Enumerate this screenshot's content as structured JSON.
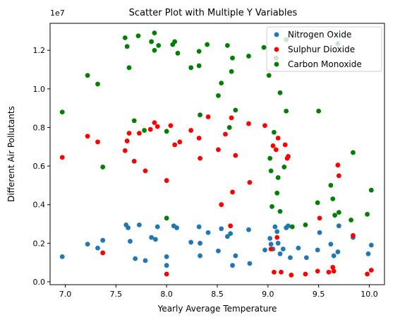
{
  "chart_data": {
    "type": "scatter",
    "title": "Scatter Plot with Multiple Y Variables",
    "xlabel": "Yearly Average Temperature",
    "ylabel": "Different Air Pollutants",
    "y_multiplier_label": "1e7",
    "xlim": [
      6.85,
      10.15
    ],
    "ylim": [
      -150000,
      13400000
    ],
    "x_ticks": [
      7.0,
      7.5,
      8.0,
      8.5,
      9.0,
      9.5,
      10.0
    ],
    "x_tick_labels": [
      "7.0",
      "7.5",
      "8.0",
      "8.5",
      "9.0",
      "9.5",
      "10.0"
    ],
    "y_ticks": [
      0,
      2000000,
      4000000,
      6000000,
      8000000,
      10000000,
      12000000
    ],
    "y_tick_labels": [
      "0.0",
      "0.2",
      "0.4",
      "0.6",
      "0.8",
      "1.0",
      "1.2"
    ],
    "legend_position": "upper-right",
    "series": [
      {
        "name": "Nitrogen Oxide",
        "color": "#1f77b4",
        "points": [
          [
            6.97,
            1300000
          ],
          [
            7.22,
            1950000
          ],
          [
            7.32,
            1750000
          ],
          [
            7.37,
            2150000
          ],
          [
            7.6,
            2950000
          ],
          [
            7.62,
            2800000
          ],
          [
            7.64,
            2100000
          ],
          [
            7.69,
            1200000
          ],
          [
            7.73,
            2950000
          ],
          [
            7.79,
            1100000
          ],
          [
            7.85,
            2300000
          ],
          [
            7.89,
            2200000
          ],
          [
            7.91,
            2850000
          ],
          [
            8.0,
            1300000
          ],
          [
            8.0,
            850000
          ],
          [
            8.07,
            2900000
          ],
          [
            8.1,
            2800000
          ],
          [
            8.24,
            2050000
          ],
          [
            8.32,
            2850000
          ],
          [
            8.33,
            1350000
          ],
          [
            8.33,
            2000000
          ],
          [
            8.41,
            2550000
          ],
          [
            8.51,
            1600000
          ],
          [
            8.54,
            2750000
          ],
          [
            8.6,
            2350000
          ],
          [
            8.63,
            2500000
          ],
          [
            8.65,
            850000
          ],
          [
            8.68,
            1350000
          ],
          [
            8.81,
            2700000
          ],
          [
            8.82,
            950000
          ],
          [
            8.97,
            1650000
          ],
          [
            9.02,
            2250000
          ],
          [
            9.03,
            1950000
          ],
          [
            9.05,
            1700000
          ],
          [
            9.07,
            2850000
          ],
          [
            9.09,
            2600000
          ],
          [
            9.1,
            2000000
          ],
          [
            9.12,
            1450000
          ],
          [
            9.15,
            1700000
          ],
          [
            9.18,
            2800000
          ],
          [
            9.2,
            2900000
          ],
          [
            9.22,
            1250000
          ],
          [
            9.3,
            1750000
          ],
          [
            9.38,
            1250000
          ],
          [
            9.49,
            1650000
          ],
          [
            9.51,
            2550000
          ],
          [
            9.62,
            1950000
          ],
          [
            9.65,
            1350000
          ],
          [
            9.69,
            1550000
          ],
          [
            9.7,
            2900000
          ],
          [
            9.84,
            2300000
          ],
          [
            9.99,
            1450000
          ],
          [
            10.02,
            1900000
          ]
        ]
      },
      {
        "name": "Sulphur Dioxide",
        "color": "#ff0000",
        "points": [
          [
            6.97,
            6450000
          ],
          [
            7.22,
            7550000
          ],
          [
            7.32,
            7250000
          ],
          [
            7.37,
            1500000
          ],
          [
            7.59,
            6800000
          ],
          [
            7.61,
            7300000
          ],
          [
            7.63,
            7700000
          ],
          [
            7.68,
            6250000
          ],
          [
            7.73,
            7700000
          ],
          [
            7.79,
            5750000
          ],
          [
            7.84,
            7900000
          ],
          [
            7.88,
            8250000
          ],
          [
            7.91,
            8050000
          ],
          [
            8.0,
            5250000
          ],
          [
            8.0,
            400000
          ],
          [
            8.04,
            8100000
          ],
          [
            8.08,
            7100000
          ],
          [
            8.13,
            7250000
          ],
          [
            8.24,
            7850000
          ],
          [
            8.32,
            7450000
          ],
          [
            8.33,
            6400000
          ],
          [
            8.41,
            8550000
          ],
          [
            8.51,
            6850000
          ],
          [
            8.54,
            4000000
          ],
          [
            8.58,
            7650000
          ],
          [
            8.63,
            2900000
          ],
          [
            8.64,
            8500000
          ],
          [
            8.65,
            4650000
          ],
          [
            8.68,
            6550000
          ],
          [
            8.81,
            8200000
          ],
          [
            8.82,
            5150000
          ],
          [
            8.97,
            8100000
          ],
          [
            9.03,
            1700000
          ],
          [
            9.05,
            7050000
          ],
          [
            9.06,
            500000
          ],
          [
            9.08,
            6850000
          ],
          [
            9.09,
            2300000
          ],
          [
            9.1,
            7450000
          ],
          [
            9.13,
            500000
          ],
          [
            9.17,
            7100000
          ],
          [
            9.19,
            6400000
          ],
          [
            9.2,
            6500000
          ],
          [
            9.23,
            350000
          ],
          [
            9.37,
            400000
          ],
          [
            9.49,
            550000
          ],
          [
            9.51,
            3300000
          ],
          [
            9.6,
            500000
          ],
          [
            9.64,
            750000
          ],
          [
            9.65,
            550000
          ],
          [
            9.69,
            6050000
          ],
          [
            9.7,
            5500000
          ],
          [
            9.84,
            2400000
          ],
          [
            9.98,
            400000
          ],
          [
            10.02,
            600000
          ]
        ]
      },
      {
        "name": "Carbon Monoxide",
        "color": "#008000",
        "points": [
          [
            6.97,
            8800000
          ],
          [
            7.22,
            10700000
          ],
          [
            7.32,
            10250000
          ],
          [
            7.37,
            5950000
          ],
          [
            7.59,
            12650000
          ],
          [
            7.61,
            12200000
          ],
          [
            7.63,
            11100000
          ],
          [
            7.68,
            8350000
          ],
          [
            7.72,
            12750000
          ],
          [
            7.78,
            7850000
          ],
          [
            7.85,
            12450000
          ],
          [
            7.88,
            12000000
          ],
          [
            7.88,
            12900000
          ],
          [
            7.92,
            12250000
          ],
          [
            8.0,
            7800000
          ],
          [
            8.0,
            3300000
          ],
          [
            8.06,
            12300000
          ],
          [
            8.08,
            12450000
          ],
          [
            8.11,
            11850000
          ],
          [
            8.24,
            11100000
          ],
          [
            8.32,
            11950000
          ],
          [
            8.32,
            11200000
          ],
          [
            8.33,
            8650000
          ],
          [
            8.4,
            12300000
          ],
          [
            8.51,
            9650000
          ],
          [
            8.54,
            10300000
          ],
          [
            8.6,
            12250000
          ],
          [
            8.62,
            8000000
          ],
          [
            8.64,
            10900000
          ],
          [
            8.65,
            11600000
          ],
          [
            8.68,
            8900000
          ],
          [
            8.81,
            11700000
          ],
          [
            8.96,
            12150000
          ],
          [
            9.01,
            10700000
          ],
          [
            9.02,
            6400000
          ],
          [
            9.03,
            5750000
          ],
          [
            9.04,
            3900000
          ],
          [
            9.06,
            7750000
          ],
          [
            9.08,
            11600000
          ],
          [
            9.09,
            4600000
          ],
          [
            9.1,
            5400000
          ],
          [
            9.12,
            3650000
          ],
          [
            9.12,
            9800000
          ],
          [
            9.16,
            5950000
          ],
          [
            9.18,
            8850000
          ],
          [
            9.18,
            12550000
          ],
          [
            9.24,
            2850000
          ],
          [
            9.37,
            2950000
          ],
          [
            9.49,
            4100000
          ],
          [
            9.5,
            8850000
          ],
          [
            9.62,
            5000000
          ],
          [
            9.64,
            4300000
          ],
          [
            9.66,
            3450000
          ],
          [
            9.69,
            12350000
          ],
          [
            9.7,
            3600000
          ],
          [
            9.82,
            3200000
          ],
          [
            9.84,
            6700000
          ],
          [
            9.98,
            3500000
          ],
          [
            10.02,
            4750000
          ]
        ]
      }
    ]
  }
}
